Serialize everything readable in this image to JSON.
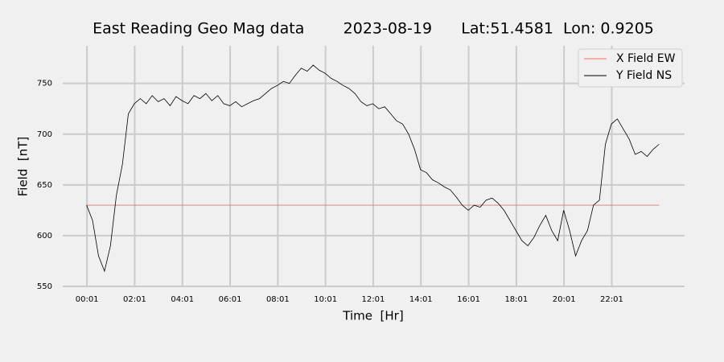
{
  "chart_data": {
    "type": "line",
    "title": "East Reading Geo Mag data        2023-08-19      Lat:51.4581  Lon: 0.9205",
    "x_label": "Time  [Hr]",
    "y_label": "Field  [nT]",
    "xlim": [
      -1.0,
      25.07
    ],
    "ylim": [
      550,
      787
    ],
    "xticks": [
      {
        "value": 0.0167,
        "label": "00:01"
      },
      {
        "value": 2.0167,
        "label": "02:01"
      },
      {
        "value": 4.0167,
        "label": "04:01"
      },
      {
        "value": 6.0167,
        "label": "06:01"
      },
      {
        "value": 8.0167,
        "label": "08:01"
      },
      {
        "value": 10.0167,
        "label": "10:01"
      },
      {
        "value": 12.0167,
        "label": "12:01"
      },
      {
        "value": 14.0167,
        "label": "14:01"
      },
      {
        "value": 16.0167,
        "label": "16:01"
      },
      {
        "value": 18.0167,
        "label": "18:01"
      },
      {
        "value": 20.0167,
        "label": "20:01"
      },
      {
        "value": 22.0167,
        "label": "22:01"
      }
    ],
    "yticks": [
      550,
      600,
      650,
      700,
      750
    ],
    "grid": true,
    "legend": "upper right",
    "series": [
      {
        "name": "X Field EW",
        "color": "#e8706a",
        "x": [
          0,
          24
        ],
        "values": [
          630,
          630
        ]
      },
      {
        "name": "Y Field NS",
        "color": "#000000",
        "x": [
          0,
          0.25,
          0.5,
          0.75,
          1,
          1.25,
          1.5,
          1.75,
          2,
          2.25,
          2.5,
          2.75,
          3,
          3.25,
          3.5,
          3.75,
          4,
          4.25,
          4.5,
          4.75,
          5,
          5.25,
          5.5,
          5.75,
          6,
          6.25,
          6.5,
          6.75,
          7,
          7.25,
          7.5,
          7.75,
          8,
          8.25,
          8.5,
          8.75,
          9,
          9.25,
          9.5,
          9.75,
          10,
          10.25,
          10.5,
          10.75,
          11,
          11.25,
          11.5,
          11.75,
          12,
          12.25,
          12.5,
          12.75,
          13,
          13.25,
          13.5,
          13.75,
          14,
          14.25,
          14.5,
          14.75,
          15,
          15.25,
          15.5,
          15.75,
          16,
          16.25,
          16.5,
          16.75,
          17,
          17.25,
          17.5,
          17.75,
          18,
          18.25,
          18.5,
          18.75,
          19,
          19.25,
          19.5,
          19.75,
          20,
          20.25,
          20.5,
          20.75,
          21,
          21.25,
          21.5,
          21.75,
          22,
          22.25,
          22.5,
          22.75,
          23,
          23.25,
          23.5,
          23.75,
          24
        ],
        "values": [
          630,
          615,
          580,
          565,
          590,
          640,
          670,
          720,
          730,
          735,
          730,
          738,
          732,
          735,
          728,
          737,
          733,
          730,
          738,
          735,
          740,
          733,
          738,
          730,
          728,
          732,
          727,
          730,
          733,
          735,
          740,
          745,
          748,
          752,
          750,
          758,
          765,
          762,
          768,
          763,
          760,
          755,
          752,
          748,
          745,
          740,
          732,
          728,
          730,
          725,
          727,
          720,
          713,
          710,
          700,
          685,
          665,
          662,
          655,
          652,
          648,
          645,
          638,
          630,
          625,
          630,
          628,
          635,
          637,
          632,
          625,
          615,
          605,
          595,
          590,
          598,
          610,
          620,
          605,
          595,
          625,
          605,
          580,
          595,
          605,
          630,
          635,
          690,
          710,
          715,
          705,
          695,
          680,
          683,
          678,
          685,
          690
        ]
      }
    ]
  }
}
